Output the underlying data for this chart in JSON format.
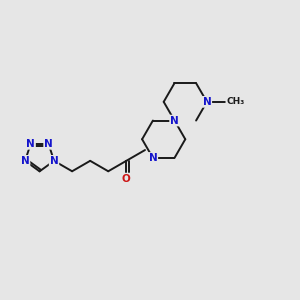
{
  "bg_color": "#e6e6e6",
  "bond_color": "#1a1a1a",
  "N_color": "#1414cc",
  "O_color": "#cc1414",
  "bond_width": 1.4,
  "font_size": 7.5,
  "xlim": [
    -1.5,
    10.5
  ],
  "ylim": [
    -2.0,
    4.5
  ]
}
